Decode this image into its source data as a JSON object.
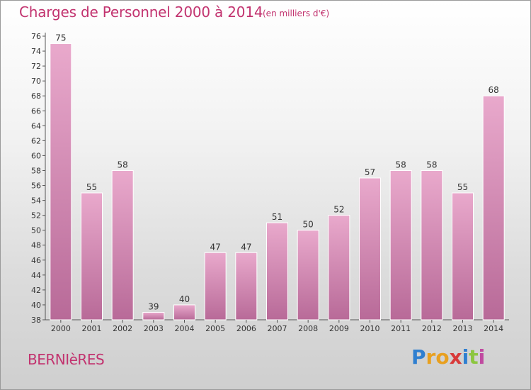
{
  "title": "Charges de Personnel 2000 à 2014",
  "unit_note": "(en milliers d'€)",
  "commune": "BERNIèRES",
  "brand": {
    "letters": [
      "P",
      "r",
      "o",
      "x",
      "i",
      "t",
      "i"
    ],
    "colors": [
      "#2f7fd0",
      "#e8a020",
      "#e8a020",
      "#d83a3a",
      "#2f7fd0",
      "#8cc63f",
      "#c04aa0"
    ]
  },
  "colors": {
    "bar_top": "#e9a9cc",
    "bar_bottom": "#b86a98",
    "title": "#c2336f"
  },
  "chart_data": {
    "type": "bar",
    "categories": [
      "2000",
      "2001",
      "2002",
      "2003",
      "2004",
      "2005",
      "2006",
      "2007",
      "2008",
      "2009",
      "2010",
      "2011",
      "2012",
      "2013",
      "2014"
    ],
    "values": [
      75,
      55,
      58,
      39,
      40,
      47,
      47,
      51,
      50,
      52,
      57,
      58,
      58,
      55,
      68
    ],
    "title": "Charges de Personnel 2000 à 2014",
    "ylim": [
      38,
      76
    ],
    "yticks": [
      38,
      40,
      42,
      44,
      46,
      48,
      50,
      52,
      54,
      56,
      58,
      60,
      62,
      64,
      66,
      68,
      70,
      72,
      74,
      76
    ],
    "grid": false,
    "legend": "none"
  }
}
